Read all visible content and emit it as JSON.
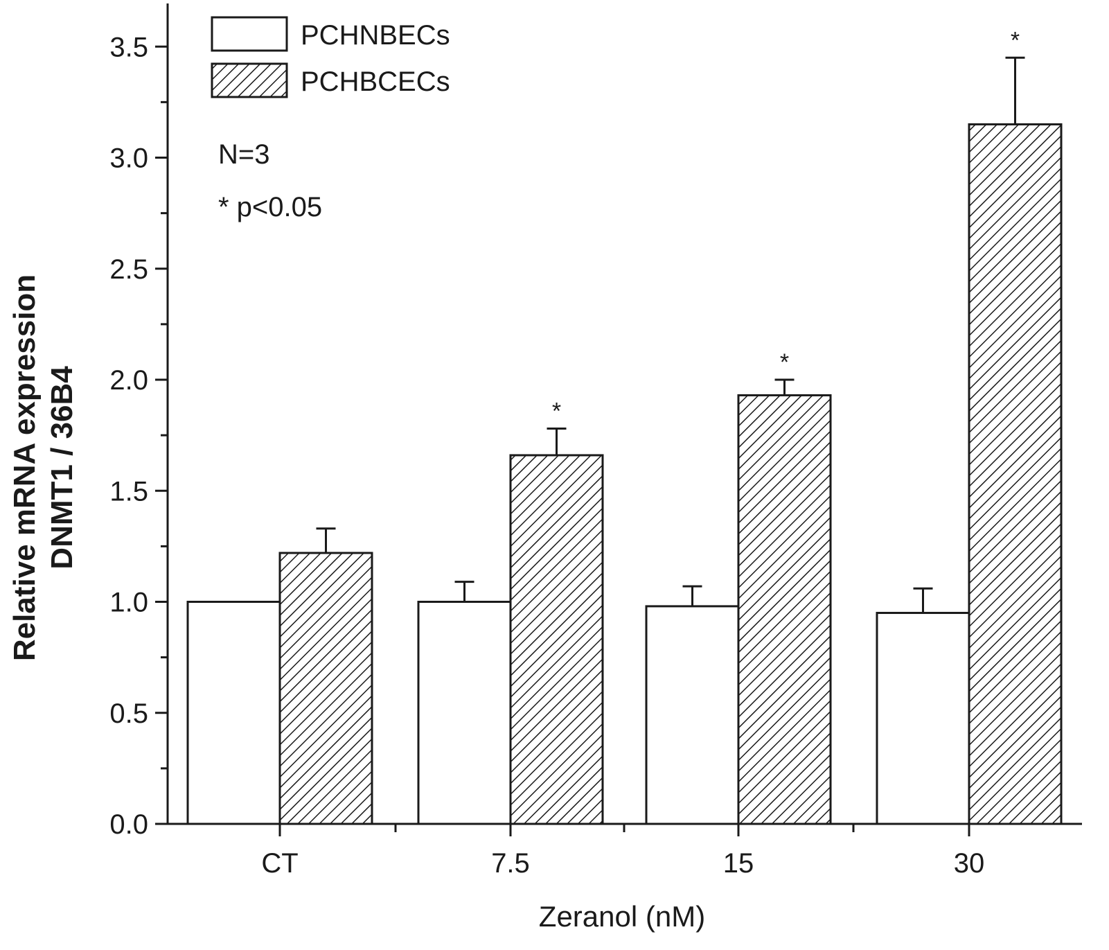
{
  "chart_data": {
    "type": "bar",
    "xlabel": "Zeranol (nM)",
    "ylabel_line1": "Relative mRNA expression",
    "ylabel_line2": "DNMT1 / 36B4",
    "ylim": [
      0,
      3.6
    ],
    "yticks": [
      0.0,
      0.5,
      1.0,
      1.5,
      2.0,
      2.5,
      3.0,
      3.5
    ],
    "ytick_labels": [
      "0.0",
      "0.5",
      "1.0",
      "1.5",
      "2.0",
      "2.5",
      "3.0",
      "3.5"
    ],
    "categories": [
      "CT",
      "7.5",
      "15",
      "30"
    ],
    "series": [
      {
        "name": "PCHNBECs",
        "pattern": "none",
        "values": [
          1.0,
          1.0,
          0.98,
          0.95
        ],
        "errors": [
          0.0,
          0.09,
          0.09,
          0.11
        ],
        "significance": [
          "",
          "",
          "",
          ""
        ]
      },
      {
        "name": "PCHBCECs",
        "pattern": "hatched",
        "values": [
          1.22,
          1.66,
          1.93,
          3.15
        ],
        "errors": [
          0.11,
          0.12,
          0.07,
          0.3
        ],
        "significance": [
          "",
          "*",
          "*",
          "*"
        ]
      }
    ],
    "annotations": [
      "N=3",
      "* p<0.05"
    ],
    "legend_position": "top-left"
  },
  "colors": {
    "axis": "#1a1a1a",
    "bar_fill": "#ffffff",
    "hatch": "#1a1a1a"
  }
}
